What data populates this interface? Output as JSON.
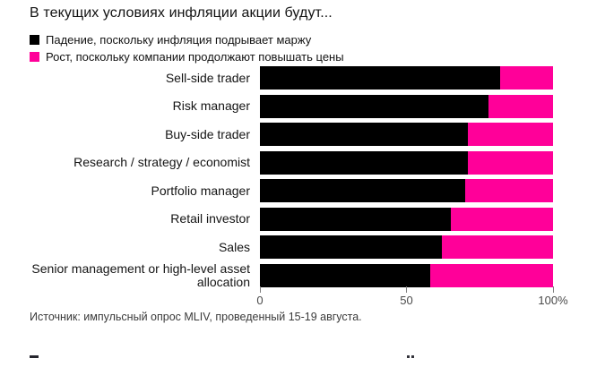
{
  "title": "В текущих условиях инфляции акции будут...",
  "legend": [
    {
      "label": "Падение, поскольку инфляция подрывает маржу",
      "color": "#000000"
    },
    {
      "label": "Рост, поскольку компании продолжают повышать цены",
      "color": "#ff0099"
    }
  ],
  "chart_data": {
    "type": "bar",
    "orientation": "horizontal",
    "stacked": true,
    "categories": [
      "Sell-side trader",
      "Risk manager",
      "Buy-side trader",
      "Research / strategy / economist",
      "Portfolio manager",
      "Retail investor",
      "Sales",
      "Senior management or high-level asset allocation"
    ],
    "series": [
      {
        "name": "Падение, поскольку инфляция подрывает маржу",
        "color": "#000000",
        "values": [
          82,
          78,
          71,
          71,
          70,
          65,
          62,
          58
        ]
      },
      {
        "name": "Рост, поскольку компании продолжают повышать цены",
        "color": "#ff0099",
        "values": [
          18,
          22,
          29,
          29,
          30,
          35,
          38,
          42
        ]
      }
    ],
    "xlim": [
      0,
      100
    ],
    "x_ticks": [
      {
        "value": 0,
        "label": "0"
      },
      {
        "value": 50,
        "label": "50"
      },
      {
        "value": 100,
        "label": "100%"
      }
    ],
    "grid": false,
    "legend_position": "top"
  },
  "source": "Источник: импульсный опрос MLIV, проведенный 15-19 августа."
}
